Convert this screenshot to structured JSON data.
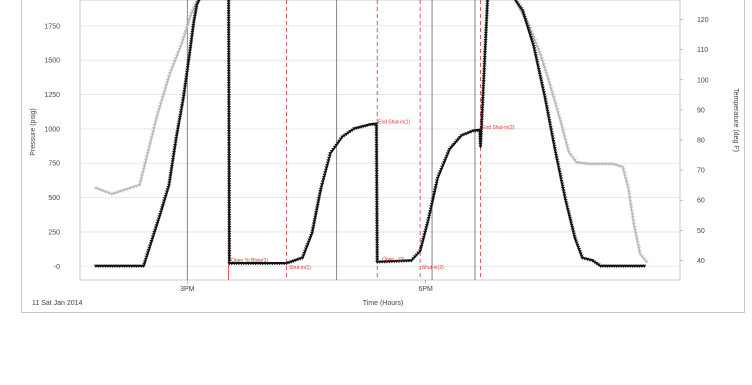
{
  "chart_data": {
    "type": "line",
    "xlabel": "Time (Hours)",
    "date_label": "11 Sat Jan 2014",
    "x_unit": "hours",
    "x_ticks": [
      {
        "value": 15.0,
        "label": "3PM"
      },
      {
        "value": 18.0,
        "label": "6PM"
      }
    ],
    "xlim": [
      13.65,
      21.2
    ],
    "left_axis": {
      "label": "Pressure (psig)",
      "ylim": [
        -100,
        1960
      ],
      "ticks": [
        0,
        250,
        500,
        750,
        1000,
        1250,
        1500,
        1750
      ],
      "tick_labels": [
        "-0",
        "250",
        "500",
        "750",
        "1000",
        "1250",
        "1500",
        "1750"
      ]
    },
    "right_axis": {
      "label": "Temperature (deg F)",
      "ylim": [
        33.5,
        127.5
      ],
      "ticks": [
        40,
        50,
        60,
        70,
        80,
        90,
        100,
        110,
        120
      ],
      "tick_labels": [
        "40",
        "50",
        "60",
        "70",
        "80",
        "90",
        "100",
        "110",
        "120"
      ]
    },
    "grid": true,
    "colors": {
      "pressure": "#111111",
      "temperature": "#b4b4b4",
      "event_line": "#e0302a",
      "marker_line": "#666666",
      "grid": "#e2e2e2"
    },
    "series": [
      {
        "axis": "left",
        "points": [
          [
            13.85,
            0
          ],
          [
            14.03,
            0
          ],
          [
            14.45,
            0
          ],
          [
            14.65,
            360
          ],
          [
            14.77,
            590
          ],
          [
            14.86,
            930
          ],
          [
            14.95,
            1220
          ],
          [
            15.03,
            1550
          ],
          [
            15.08,
            1770
          ],
          [
            15.12,
            1900
          ],
          [
            15.17,
            1960
          ],
          [
            15.52,
            1960
          ],
          [
            15.53,
            20
          ],
          [
            16.25,
            20
          ],
          [
            16.45,
            60
          ],
          [
            16.57,
            240
          ],
          [
            16.68,
            560
          ],
          [
            16.8,
            820
          ],
          [
            16.95,
            940
          ],
          [
            17.1,
            1000
          ],
          [
            17.3,
            1030
          ],
          [
            17.38,
            1035
          ],
          [
            17.39,
            30
          ],
          [
            17.82,
            40
          ],
          [
            17.93,
            110
          ],
          [
            18.03,
            330
          ],
          [
            18.15,
            640
          ],
          [
            18.3,
            850
          ],
          [
            18.45,
            950
          ],
          [
            18.6,
            985
          ],
          [
            18.68,
            990
          ],
          [
            18.69,
            870
          ],
          [
            18.78,
            1960
          ],
          [
            19.1,
            1960
          ],
          [
            19.22,
            1860
          ],
          [
            19.36,
            1600
          ],
          [
            19.5,
            1230
          ],
          [
            19.63,
            840
          ],
          [
            19.76,
            480
          ],
          [
            19.88,
            200
          ],
          [
            19.97,
            60
          ],
          [
            20.1,
            40
          ],
          [
            20.2,
            0
          ],
          [
            20.4,
            0
          ],
          [
            20.75,
            0
          ]
        ]
      },
      {
        "axis": "right",
        "points": [
          [
            13.85,
            64
          ],
          [
            14.05,
            62
          ],
          [
            14.4,
            65
          ],
          [
            14.62,
            88
          ],
          [
            14.78,
            102
          ],
          [
            14.93,
            112
          ],
          [
            15.05,
            122
          ],
          [
            15.15,
            127.5
          ],
          [
            19.1,
            127.5
          ],
          [
            19.3,
            118
          ],
          [
            19.45,
            108
          ],
          [
            19.58,
            97
          ],
          [
            19.7,
            86
          ],
          [
            19.8,
            76
          ],
          [
            19.9,
            72.5
          ],
          [
            20.05,
            72
          ],
          [
            20.35,
            72
          ],
          [
            20.48,
            71
          ],
          [
            20.55,
            64
          ],
          [
            20.62,
            52
          ],
          [
            20.7,
            42
          ],
          [
            20.78,
            39.5
          ]
        ]
      }
    ],
    "vertical_markers": [
      {
        "x": 15.0,
        "style": "solid"
      },
      {
        "x": 16.88,
        "style": "solid"
      },
      {
        "x": 18.08,
        "style": "solid"
      },
      {
        "x": 18.62,
        "style": "solid"
      },
      {
        "x": 15.52,
        "style": "solid-red"
      },
      {
        "x": 16.25,
        "style": "dashed-red"
      },
      {
        "x": 17.39,
        "style": "dashed-red"
      },
      {
        "x": 17.93,
        "style": "dashed-red"
      },
      {
        "x": 18.69,
        "style": "dashed-red"
      }
    ],
    "annotations": [
      {
        "text": "Open To Blow(1)",
        "x": 15.55,
        "y": 30
      },
      {
        "text": "Shut-in(1)",
        "x": 16.28,
        "y": -20
      },
      {
        "text": "End Shut-in(1)",
        "x": 17.4,
        "y": 1040
      },
      {
        "text": "Open...(2)",
        "x": 17.45,
        "y": 40
      },
      {
        "text": "Shut-in(2)",
        "x": 17.95,
        "y": -20
      },
      {
        "text": "End Shut-in(2)",
        "x": 18.71,
        "y": 1000
      }
    ]
  }
}
